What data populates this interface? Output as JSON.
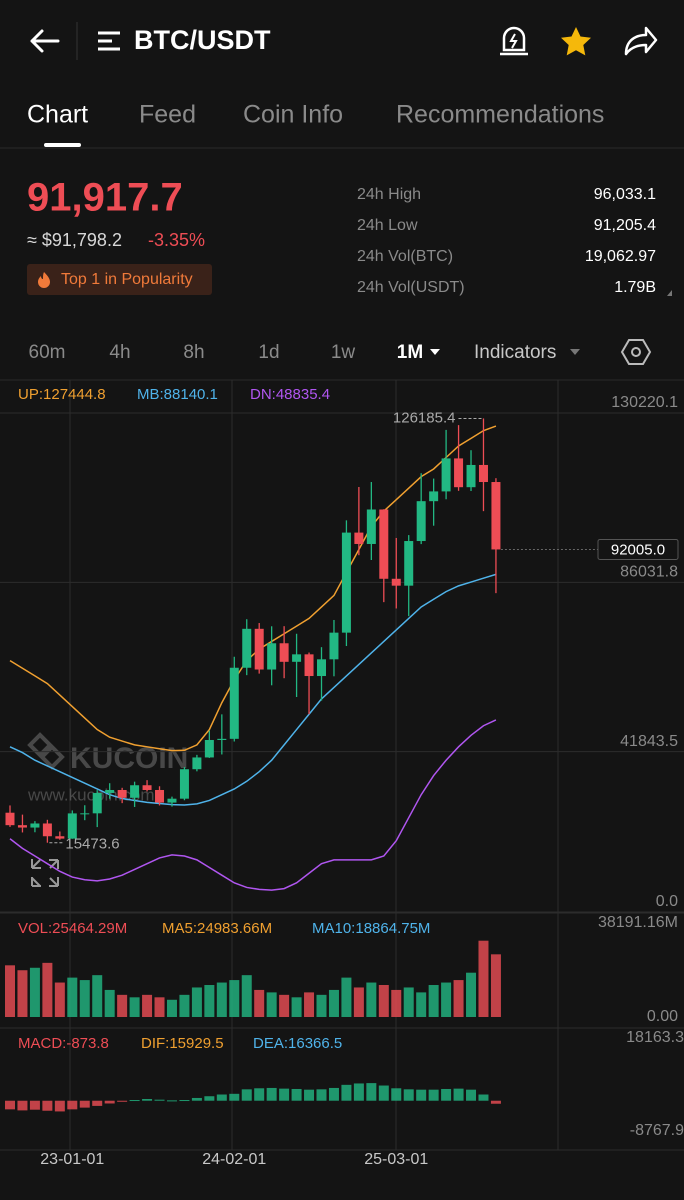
{
  "header": {
    "title": "BTC/USDT"
  },
  "tabs": [
    "Chart",
    "Feed",
    "Coin Info",
    "Recommendations"
  ],
  "price": {
    "last": "91,917.7",
    "approx": "≈ $91,798.2",
    "change": "-3.35%",
    "badge": "Top 1 in Popularity"
  },
  "stats": [
    {
      "label": "24h High",
      "value": "96,033.1"
    },
    {
      "label": "24h Low",
      "value": "91,205.4"
    },
    {
      "label": "24h Vol(BTC)",
      "value": "19,062.97"
    },
    {
      "label": "24h Vol(USDT)",
      "value": "1.79B"
    }
  ],
  "timeframes": [
    "60m",
    "4h",
    "8h",
    "1d",
    "1w",
    "1M"
  ],
  "indicators": "Indicators",
  "watermark": {
    "logo": "KUCOIN",
    "url": "www.kucoin.com"
  },
  "chart_data": {
    "type": "candlestick",
    "categories": [
      null,
      null,
      null,
      null,
      null,
      "23-01-01",
      null,
      null,
      null,
      null,
      null,
      null,
      null,
      null,
      null,
      null,
      null,
      null,
      "24-02-01",
      null,
      null,
      null,
      null,
      null,
      null,
      null,
      null,
      null,
      null,
      null,
      null,
      "25-03-01",
      null,
      null,
      null,
      null,
      null,
      null,
      null,
      null
    ],
    "open": [
      23300,
      20050,
      19430,
      20490,
      17160,
      16540,
      23120,
      23140,
      28460,
      29230,
      27200,
      30470,
      29230,
      25940,
      26960,
      34650,
      37720,
      42280,
      42580,
      61130,
      71290,
      60670,
      67520,
      62680,
      64630,
      58970,
      63330,
      70290,
      96400,
      93430,
      102430,
      84350,
      82550,
      94200,
      104600,
      107150,
      115760,
      108250,
      114050,
      109600
    ],
    "high": [
      25200,
      22800,
      21100,
      21450,
      18400,
      23900,
      25250,
      29200,
      31000,
      29800,
      31400,
      31800,
      30200,
      27500,
      35200,
      38400,
      44700,
      48970,
      64000,
      73800,
      72800,
      71950,
      71980,
      70000,
      65100,
      66500,
      73600,
      99600,
      108300,
      109600,
      102500,
      95000,
      95750,
      111900,
      110500,
      123200,
      124450,
      117900,
      126185.4,
      110600
    ],
    "low": [
      19600,
      18150,
      18200,
      15473.6,
      16250,
      16500,
      21350,
      19550,
      26950,
      25800,
      24800,
      28850,
      25200,
      24900,
      26550,
      34100,
      37600,
      38500,
      41880,
      59200,
      59600,
      56550,
      58400,
      53500,
      49000,
      52550,
      58900,
      66800,
      90500,
      89250,
      78250,
      76600,
      74600,
      93400,
      98200,
      105100,
      107300,
      107250,
      102000,
      80600
    ],
    "close": [
      20050,
      19430,
      20490,
      17160,
      16540,
      23120,
      23140,
      28460,
      29230,
      27200,
      30470,
      29230,
      25940,
      26960,
      34650,
      37720,
      42280,
      42580,
      61130,
      71290,
      60670,
      67520,
      62680,
      64630,
      58970,
      63330,
      70290,
      96400,
      93430,
      102430,
      84350,
      82550,
      94200,
      104600,
      107150,
      115760,
      108250,
      114050,
      109600,
      92005
    ],
    "colors": {
      "up": "#22b883",
      "down": "#ee4d55"
    },
    "ylim": [
      0,
      130220.1
    ],
    "yticks": [
      130220.1,
      86031.8,
      41843.5,
      {
        "value": 0,
        "label": "0.0"
      }
    ],
    "max_label": 126185.4,
    "min_label": 15473.6,
    "last_price": {
      "value": 92005,
      "label": "92005.0"
    },
    "bands": [
      {
        "label": "UP:127444.8",
        "color": "#f0a030",
        "values": [
          63000,
          61000,
          59000,
          57000,
          54000,
          51000,
          48000,
          45000,
          43000,
          42000,
          41000,
          40500,
          40000,
          39500,
          39600,
          41000,
          45000,
          52000,
          58000,
          63000,
          66000,
          68000,
          70000,
          72000,
          74000,
          77000,
          80000,
          86000,
          92000,
          98000,
          102000,
          105000,
          108000,
          111000,
          113000,
          116000,
          119000,
          121000,
          123000,
          124200
        ]
      },
      {
        "label": "MB:88140.1",
        "color": "#4fb3ea",
        "values": [
          40500,
          39000,
          37000,
          35500,
          34000,
          32500,
          31000,
          29500,
          28000,
          27000,
          26500,
          26000,
          25700,
          25400,
          25300,
          25600,
          26500,
          28000,
          29500,
          31500,
          34000,
          37000,
          41000,
          45000,
          49000,
          53000,
          56000,
          59000,
          62000,
          65000,
          68000,
          71000,
          74000,
          77000,
          79000,
          81000,
          82500,
          83500,
          84500,
          85500
        ]
      },
      {
        "label": "DN:48835.4",
        "color": "#b056f0",
        "values": [
          16500,
          14000,
          12000,
          10000,
          8000,
          6500,
          5800,
          5500,
          6000,
          7000,
          8500,
          10000,
          11500,
          12300,
          12000,
          11000,
          9000,
          7000,
          5000,
          3800,
          3300,
          3100,
          3500,
          5000,
          7500,
          10000,
          11000,
          11000,
          11000,
          11000,
          12000,
          16000,
          22000,
          28000,
          33000,
          37000,
          40500,
          43500,
          46000,
          47500
        ]
      }
    ],
    "volume": {
      "legend": [
        {
          "label": "VOL:25464.29M",
          "color": "#ee4d55"
        },
        {
          "label": "MA5:24983.66M",
          "color": "#f0a030"
        },
        {
          "label": "MA10:18864.75M",
          "color": "#4fb3ea"
        }
      ],
      "values": [
        21000,
        19000,
        20000,
        22000,
        14000,
        16000,
        15000,
        17000,
        11000,
        9000,
        8000,
        9000,
        8000,
        7000,
        9000,
        12000,
        13000,
        14000,
        15000,
        17000,
        11000,
        10000,
        9000,
        8000,
        10000,
        9000,
        11000,
        16000,
        12000,
        14000,
        13000,
        11000,
        12000,
        10000,
        13000,
        14000,
        15000,
        18000,
        31000,
        25464.29
      ],
      "ylim": [
        0,
        38191.16
      ],
      "yticks": [
        {
          "value": 38191.16,
          "label": "38191.16M"
        },
        {
          "value": 0,
          "label": "0.00"
        }
      ]
    },
    "macd": {
      "legend": [
        {
          "label": "MACD:-873.8",
          "color": "#ee4d55"
        },
        {
          "label": "DIF:15929.5",
          "color": "#f0a030"
        },
        {
          "label": "DEA:16366.5",
          "color": "#4fb3ea"
        }
      ],
      "values": [
        -2500,
        -2800,
        -2600,
        -2900,
        -3100,
        -2500,
        -2000,
        -1500,
        -800,
        -300,
        200,
        500,
        300,
        100,
        200,
        800,
        1300,
        1800,
        2000,
        3300,
        3600,
        3700,
        3500,
        3400,
        3200,
        3300,
        3700,
        4600,
        5000,
        5100,
        4400,
        3600,
        3300,
        3200,
        3200,
        3400,
        3500,
        3200,
        1800,
        -873.8
      ],
      "ylim": [
        -8767.9,
        18163.3
      ],
      "yticks": [
        18163.3,
        -8767.9
      ]
    }
  }
}
